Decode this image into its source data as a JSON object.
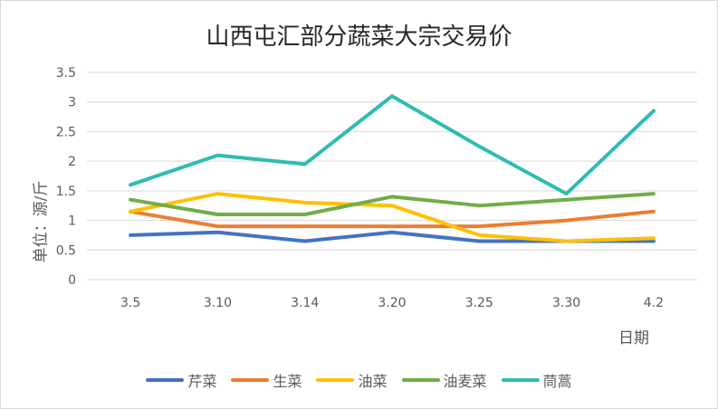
{
  "chart_data": {
    "type": "line",
    "title": "山西屯汇部分蔬菜大宗交易价",
    "xlabel": "日期",
    "ylabel": "单位：源/斤",
    "categories": [
      "3.5",
      "3.10",
      "3.14",
      "3.20",
      "3.25",
      "3.30",
      "4.2"
    ],
    "ylim": [
      0,
      3.5
    ],
    "yticks": [
      0,
      0.5,
      1,
      1.5,
      2,
      2.5,
      3,
      3.5
    ],
    "ytick_labels": [
      "0",
      "0.5",
      "1",
      "1.5",
      "2",
      "2.5",
      "3",
      "3.5"
    ],
    "grid": true,
    "legend": "bottom",
    "series": [
      {
        "name": "芹菜",
        "color": "#4472c4",
        "values": [
          0.75,
          0.8,
          0.65,
          0.8,
          0.65,
          0.65,
          0.65
        ]
      },
      {
        "name": "生菜",
        "color": "#ed7d31",
        "values": [
          1.15,
          0.9,
          0.9,
          0.9,
          0.9,
          1.0,
          1.15
        ]
      },
      {
        "name": "油菜",
        "color": "#ffc000",
        "values": [
          1.15,
          1.45,
          1.3,
          1.25,
          0.75,
          0.65,
          0.7
        ]
      },
      {
        "name": "油麦菜",
        "color": "#70ad47",
        "values": [
          1.35,
          1.1,
          1.1,
          1.4,
          1.25,
          1.35,
          1.45
        ]
      },
      {
        "name": "茼蒿",
        "color": "#2ebcb0",
        "values": [
          1.6,
          2.1,
          1.95,
          3.1,
          2.25,
          1.45,
          2.85
        ]
      }
    ]
  }
}
